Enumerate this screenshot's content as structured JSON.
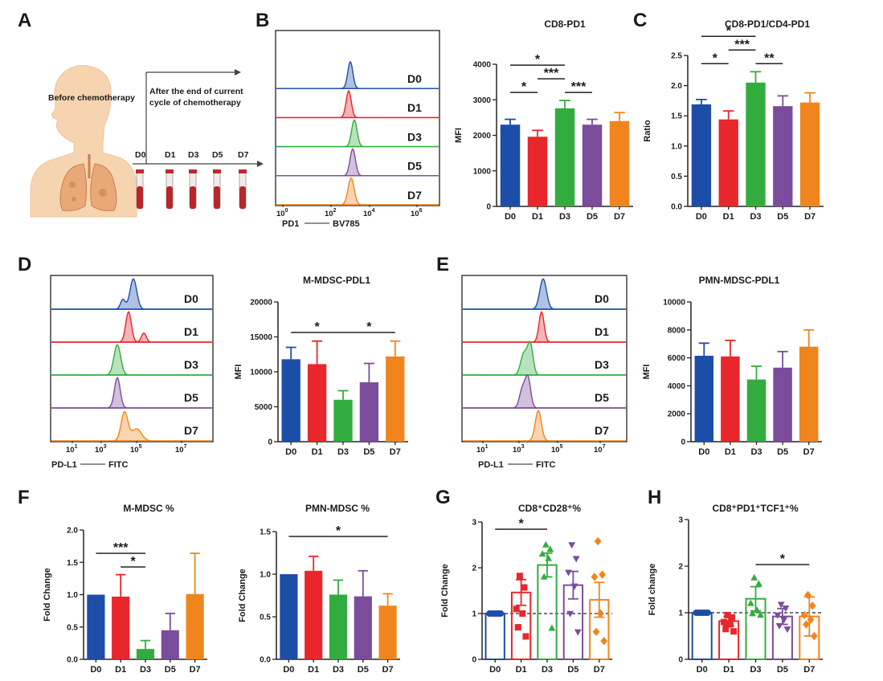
{
  "colors": {
    "D0": "#1c4ea8",
    "D1": "#e8262b",
    "D3": "#33ac3f",
    "D5": "#7b4c9c",
    "D7": "#f0851d",
    "skin": "#f6d4b0",
    "lung": "#e9a877",
    "tube": "#b8272c"
  },
  "panel_letters": {
    "A": "A",
    "B": "B",
    "C": "C",
    "D": "D",
    "E": "E",
    "F": "F",
    "G": "G",
    "H": "H"
  },
  "panelA": {
    "before": "Before chemotherapy",
    "after_line1": "After the end of  current",
    "after_line2": "cycle of chemotherapy",
    "days": [
      "D0",
      "D1",
      "D3",
      "D5",
      "D7"
    ]
  },
  "histB": {
    "labels": [
      "D0",
      "D1",
      "D3",
      "D5",
      "D7"
    ],
    "xlabel_marker": "PD1",
    "xlabel_fluor": "BV785",
    "xticks": [
      {
        "base": "10",
        "exp": "0"
      },
      {
        "base": "10",
        "exp": "2"
      },
      {
        "base": "10",
        "exp": "4"
      },
      {
        "base": "10",
        "exp": "6"
      }
    ]
  },
  "histD": {
    "labels": [
      "D0",
      "D1",
      "D3",
      "D5",
      "D7"
    ],
    "xlabel_marker": "PD-L1",
    "xlabel_fluor": "FITC",
    "xticks": [
      {
        "base": "10",
        "exp": "1"
      },
      {
        "base": "10",
        "exp": "3"
      },
      {
        "base": "10",
        "exp": "5"
      },
      {
        "base": "10",
        "exp": "7"
      }
    ]
  },
  "histE": {
    "labels": [
      "D0",
      "D1",
      "D3",
      "D5",
      "D7"
    ],
    "xlabel_marker": "PD-L1",
    "xlabel_fluor": "FITC",
    "xticks": [
      {
        "base": "10",
        "exp": "1"
      },
      {
        "base": "10",
        "exp": "3"
      },
      {
        "base": "10",
        "exp": "5"
      },
      {
        "base": "10",
        "exp": "7"
      }
    ]
  },
  "chart_data": [
    {
      "id": "cd8pd1",
      "type": "bar",
      "title": "CD8-PD1",
      "ylabel": "MFI",
      "categories": [
        "D0",
        "D1",
        "D3",
        "D5",
        "D7"
      ],
      "values": [
        2300,
        1960,
        2760,
        2300,
        2400
      ],
      "errors": [
        150,
        180,
        220,
        150,
        240
      ],
      "ylim": [
        0,
        4000
      ],
      "yticks": [
        "0",
        "1000",
        "2000",
        "3000",
        "4000"
      ],
      "ytick_values": [
        0,
        1000,
        2000,
        3000,
        4000
      ],
      "sig": [
        {
          "from": 0,
          "to": 1,
          "label": "*",
          "level": 0
        },
        {
          "from": 2,
          "to": 3,
          "label": "***",
          "level": 0
        },
        {
          "from": 1,
          "to": 2,
          "label": "***",
          "level": 1
        },
        {
          "from": 0,
          "to": 2,
          "label": "*",
          "level": 2
        }
      ]
    },
    {
      "id": "ratio",
      "type": "bar",
      "title": "CD8-PD1/CD4-PD1",
      "ylabel": "Ratio",
      "categories": [
        "D0",
        "D1",
        "D3",
        "D5",
        "D7"
      ],
      "values": [
        1.69,
        1.44,
        2.05,
        1.66,
        1.72
      ],
      "errors": [
        0.08,
        0.14,
        0.18,
        0.17,
        0.16
      ],
      "ylim": [
        0,
        2.5
      ],
      "yticks": [
        "0.0",
        "0.5",
        "1.0",
        "1.5",
        "2.0",
        "2.5"
      ],
      "ytick_values": [
        0,
        0.5,
        1,
        1.5,
        2,
        2.5
      ],
      "sig": [
        {
          "from": 0,
          "to": 1,
          "label": "*",
          "level": 0
        },
        {
          "from": 2,
          "to": 3,
          "label": "**",
          "level": 0
        },
        {
          "from": 1,
          "to": 2,
          "label": "***",
          "level": 1
        },
        {
          "from": 0,
          "to": 2,
          "label": "*",
          "level": 2
        }
      ]
    },
    {
      "id": "mmdsc_pdl1",
      "type": "bar",
      "title": "M-MDSC-PDL1",
      "ylabel": "MFI",
      "categories": [
        "D0",
        "D1",
        "D3",
        "D5",
        "D7"
      ],
      "values": [
        11800,
        11100,
        6000,
        8500,
        12200
      ],
      "errors": [
        1700,
        3300,
        1300,
        2700,
        2200
      ],
      "ylim": [
        0,
        20000
      ],
      "yticks": [
        "0",
        "5000",
        "10000",
        "15000",
        "20000"
      ],
      "ytick_values": [
        0,
        5000,
        10000,
        15000,
        20000
      ],
      "sig": [
        {
          "from": 0,
          "to": 2,
          "label": "*",
          "level": 0
        },
        {
          "from": 2,
          "to": 4,
          "label": "*",
          "level": 0
        }
      ]
    },
    {
      "id": "pmn_pdl1",
      "type": "bar",
      "title": "PMN-MDSC-PDL1",
      "ylabel": "MFI",
      "categories": [
        "D0",
        "D1",
        "D3",
        "D5",
        "D7"
      ],
      "values": [
        6150,
        6100,
        4450,
        5300,
        6800
      ],
      "errors": [
        900,
        1150,
        950,
        1150,
        1200
      ],
      "ylim": [
        0,
        10000
      ],
      "yticks": [
        "0",
        "2000",
        "4000",
        "6000",
        "8000",
        "10000"
      ],
      "ytick_values": [
        0,
        2000,
        4000,
        6000,
        8000,
        10000
      ],
      "sig": []
    },
    {
      "id": "mmdsc_pct",
      "type": "bar",
      "title": "M-MDSC %",
      "ylabel": "Fold Change",
      "categories": [
        "D0",
        "D1",
        "D3",
        "D5",
        "D7"
      ],
      "values": [
        1.0,
        0.97,
        0.16,
        0.45,
        1.01
      ],
      "errors": [
        0,
        0.34,
        0.13,
        0.26,
        0.63
      ],
      "ylim": [
        0,
        2.0
      ],
      "yticks": [
        "0.0",
        "0.5",
        "1.0",
        "1.5",
        "2.0"
      ],
      "ytick_values": [
        0,
        0.5,
        1,
        1.5,
        2
      ],
      "sig": [
        {
          "from": 1,
          "to": 2,
          "label": "*",
          "level": 0
        },
        {
          "from": 0,
          "to": 2,
          "label": "***",
          "level": 1
        }
      ]
    },
    {
      "id": "pmn_pct",
      "type": "bar",
      "title": "PMN-MDSC %",
      "ylabel": "Fold Change",
      "categories": [
        "D0",
        "D1",
        "D3",
        "D5",
        "D7"
      ],
      "values": [
        1.0,
        1.04,
        0.76,
        0.74,
        0.63
      ],
      "errors": [
        0,
        0.17,
        0.17,
        0.3,
        0.14
      ],
      "ylim": [
        0,
        1.5
      ],
      "yticks": [
        "0.0",
        "0.5",
        "1.0",
        "1.5"
      ],
      "ytick_values": [
        0,
        0.5,
        1,
        1.5
      ],
      "sig": [
        {
          "from": 0,
          "to": 4,
          "label": "*",
          "level": 0
        }
      ]
    },
    {
      "id": "cd28",
      "type": "scatter_bar",
      "title": "CD8⁺CD28⁺%",
      "ylabel": "Fold Change",
      "categories": [
        "D0",
        "D1",
        "D3",
        "D5",
        "D7"
      ],
      "values": [
        1.0,
        1.46,
        2.06,
        1.62,
        1.3
      ],
      "errors": [
        0,
        0.28,
        0.26,
        0.3,
        0.38
      ],
      "points": [
        [
          1,
          1,
          1,
          1,
          1,
          1
        ],
        [
          1.82,
          1.57,
          1.1,
          1.0,
          0.7,
          0.5
        ],
        [
          2.5,
          2.4,
          2.3,
          2.2,
          1.8,
          0.68
        ],
        [
          2.5,
          2.2,
          1.9,
          1.6,
          1.0,
          0.6
        ],
        [
          2.58,
          1.85,
          1.8,
          1.0,
          0.6,
          0.4
        ]
      ],
      "markers": [
        "circle",
        "square",
        "triangle",
        "triangle-down",
        "diamond"
      ],
      "ylim": [
        0,
        3
      ],
      "yticks": [
        "0",
        "1",
        "2",
        "3"
      ],
      "ytick_values": [
        0,
        1,
        2,
        3
      ],
      "dashed_line": 1,
      "sig": [
        {
          "from": 0,
          "to": 2,
          "label": "*",
          "level": 0
        }
      ]
    },
    {
      "id": "tcf1",
      "type": "scatter_bar",
      "title": "CD8⁺PD1⁺TCF1⁺%",
      "ylabel": "Fold change",
      "categories": [
        "D0",
        "D1",
        "D3",
        "D5",
        "D7"
      ],
      "values": [
        1.0,
        0.82,
        1.3,
        0.92,
        0.92
      ],
      "errors": [
        0,
        0.1,
        0.26,
        0.17,
        0.42
      ],
      "points": [
        [
          1,
          1,
          1,
          1,
          1,
          1
        ],
        [
          0.95,
          0.9,
          0.8,
          0.75,
          0.65,
          0.6
        ],
        [
          1.75,
          1.62,
          1.2,
          1.05,
          0.98,
          0.95
        ],
        [
          1.18,
          1.1,
          0.95,
          0.85,
          0.72,
          0.65
        ],
        [
          1.38,
          1.15,
          0.95,
          0.85,
          0.75,
          0.5
        ]
      ],
      "markers": [
        "circle",
        "square",
        "triangle",
        "triangle-down",
        "diamond"
      ],
      "ylim": [
        0,
        3
      ],
      "yticks": [
        "0",
        "1",
        "2",
        "3"
      ],
      "ytick_values": [
        0,
        1,
        2,
        3
      ],
      "dashed_line": 1,
      "sig": [
        {
          "from": 2,
          "to": 4,
          "label": "*",
          "level": 0
        }
      ]
    }
  ]
}
